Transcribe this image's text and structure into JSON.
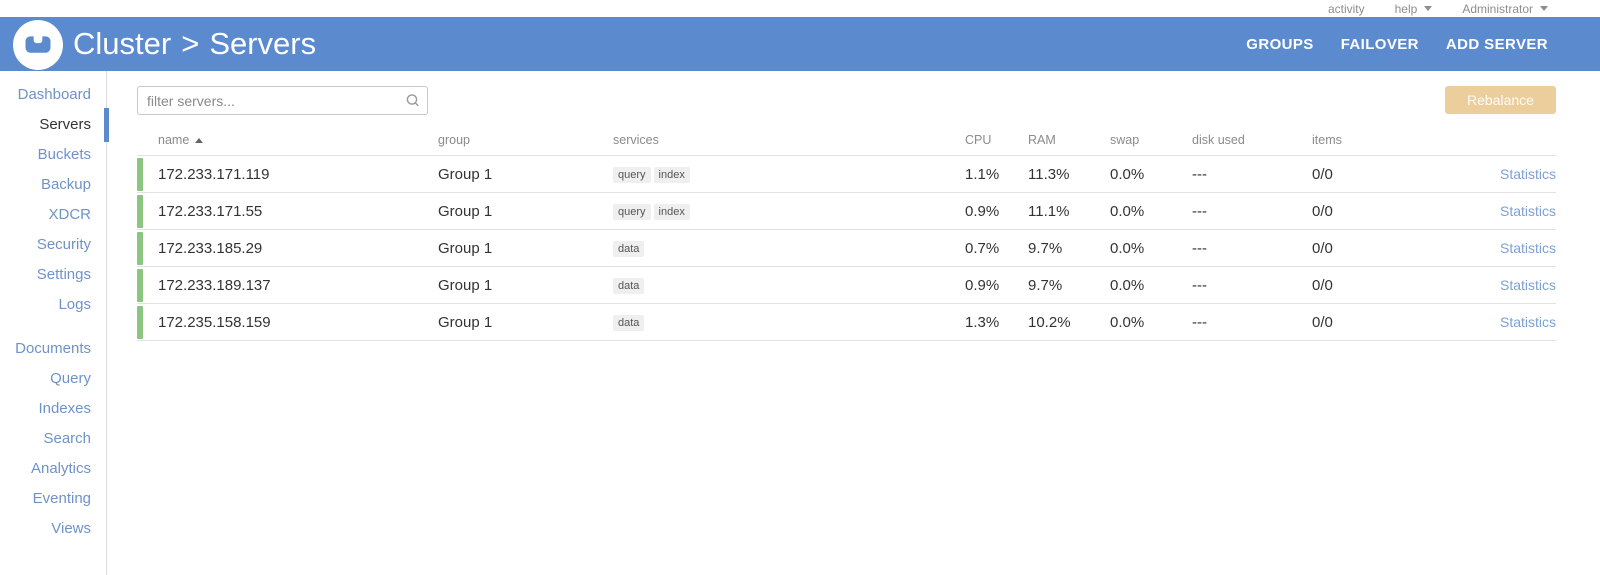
{
  "topbar": {
    "activity_label": "activity",
    "help_label": "help",
    "user_label": "Administrator"
  },
  "header": {
    "breadcrumb": {
      "cluster": "Cluster",
      "separator": ">",
      "page": "Servers"
    },
    "actions": [
      {
        "label": "GROUPS"
      },
      {
        "label": "FAILOVER"
      },
      {
        "label": "ADD SERVER"
      }
    ]
  },
  "sidebar": {
    "groups": [
      {
        "items": [
          {
            "label": "Dashboard",
            "active": false
          },
          {
            "label": "Servers",
            "active": true
          },
          {
            "label": "Buckets",
            "active": false
          },
          {
            "label": "Backup",
            "active": false
          },
          {
            "label": "XDCR",
            "active": false
          },
          {
            "label": "Security",
            "active": false
          },
          {
            "label": "Settings",
            "active": false
          },
          {
            "label": "Logs",
            "active": false
          }
        ]
      },
      {
        "items": [
          {
            "label": "Documents",
            "active": false
          },
          {
            "label": "Query",
            "active": false
          },
          {
            "label": "Indexes",
            "active": false
          },
          {
            "label": "Search",
            "active": false
          },
          {
            "label": "Analytics",
            "active": false
          },
          {
            "label": "Eventing",
            "active": false
          },
          {
            "label": "Views",
            "active": false
          }
        ]
      }
    ]
  },
  "toolbar": {
    "filter_placeholder": "filter servers...",
    "rebalance_label": "Rebalance",
    "rebalance_enabled": false
  },
  "table": {
    "columns": [
      "name",
      "group",
      "services",
      "CPU",
      "RAM",
      "swap",
      "disk used",
      "items"
    ],
    "sort": {
      "column": "name",
      "direction": "asc"
    },
    "statistics_label": "Statistics",
    "rows": [
      {
        "name": "172.233.171.119",
        "group": "Group 1",
        "services": [
          "query",
          "index"
        ],
        "cpu": "1.1%",
        "ram": "11.3%",
        "swap": "0.0%",
        "disk_used": "---",
        "items": "0/0",
        "status": "healthy"
      },
      {
        "name": "172.233.171.55",
        "group": "Group 1",
        "services": [
          "query",
          "index"
        ],
        "cpu": "0.9%",
        "ram": "11.1%",
        "swap": "0.0%",
        "disk_used": "---",
        "items": "0/0",
        "status": "healthy"
      },
      {
        "name": "172.233.185.29",
        "group": "Group 1",
        "services": [
          "data"
        ],
        "cpu": "0.7%",
        "ram": "9.7%",
        "swap": "0.0%",
        "disk_used": "---",
        "items": "0/0",
        "status": "healthy"
      },
      {
        "name": "172.233.189.137",
        "group": "Group 1",
        "services": [
          "data"
        ],
        "cpu": "0.9%",
        "ram": "9.7%",
        "swap": "0.0%",
        "disk_used": "---",
        "items": "0/0",
        "status": "healthy"
      },
      {
        "name": "172.235.158.159",
        "group": "Group 1",
        "services": [
          "data"
        ],
        "cpu": "1.3%",
        "ram": "10.2%",
        "swap": "0.0%",
        "disk_used": "---",
        "items": "0/0",
        "status": "healthy"
      }
    ]
  },
  "colors": {
    "brand_blue": "#5b8bce",
    "sidebar_link_blue": "#6f93c7",
    "stats_link_blue": "#7da1d4",
    "healthy_green": "#8bc681",
    "rebalance_disabled_orange": "#ecce9c"
  }
}
